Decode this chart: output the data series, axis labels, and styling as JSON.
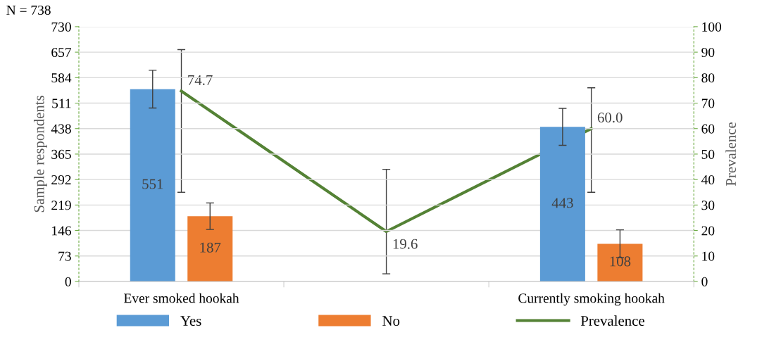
{
  "chart_data": {
    "type": "bar",
    "categories": [
      "Ever smoked hookah",
      null,
      "Currently smoking hookah"
    ],
    "series": [
      {
        "name": "Yes",
        "color": "#5b9bd5",
        "values": [
          551,
          null,
          443
        ],
        "errors": [
          54,
          null,
          53
        ]
      },
      {
        "name": "No",
        "color": "#ed7d31",
        "values": [
          187,
          null,
          108
        ],
        "errors": [
          38,
          null,
          40
        ]
      },
      {
        "name": "Prevalence",
        "type": "line",
        "axis": "y2",
        "color": "#548235",
        "values": [
          74.7,
          19.6,
          60.0
        ],
        "value_labels": [
          "74.7",
          "19.6",
          "60.0"
        ],
        "errors": [
          [
            35,
            91
          ],
          [
            3,
            44
          ],
          [
            35,
            76
          ]
        ]
      }
    ],
    "ylabel": "Sample respondents",
    "y2label": "Prevalence",
    "ylim": [
      0,
      730
    ],
    "yticks": [
      0,
      73,
      146,
      219,
      292,
      365,
      438,
      511,
      584,
      657,
      730
    ],
    "y2lim": [
      0,
      100
    ],
    "y2ticks": [
      0,
      10,
      20,
      30,
      40,
      50,
      60,
      70,
      80,
      90,
      100
    ],
    "annotations": [
      "N = 738"
    ],
    "data_labels": true,
    "grid": "y",
    "legend": "bottom",
    "marker": "none",
    "line_style": "solid"
  }
}
